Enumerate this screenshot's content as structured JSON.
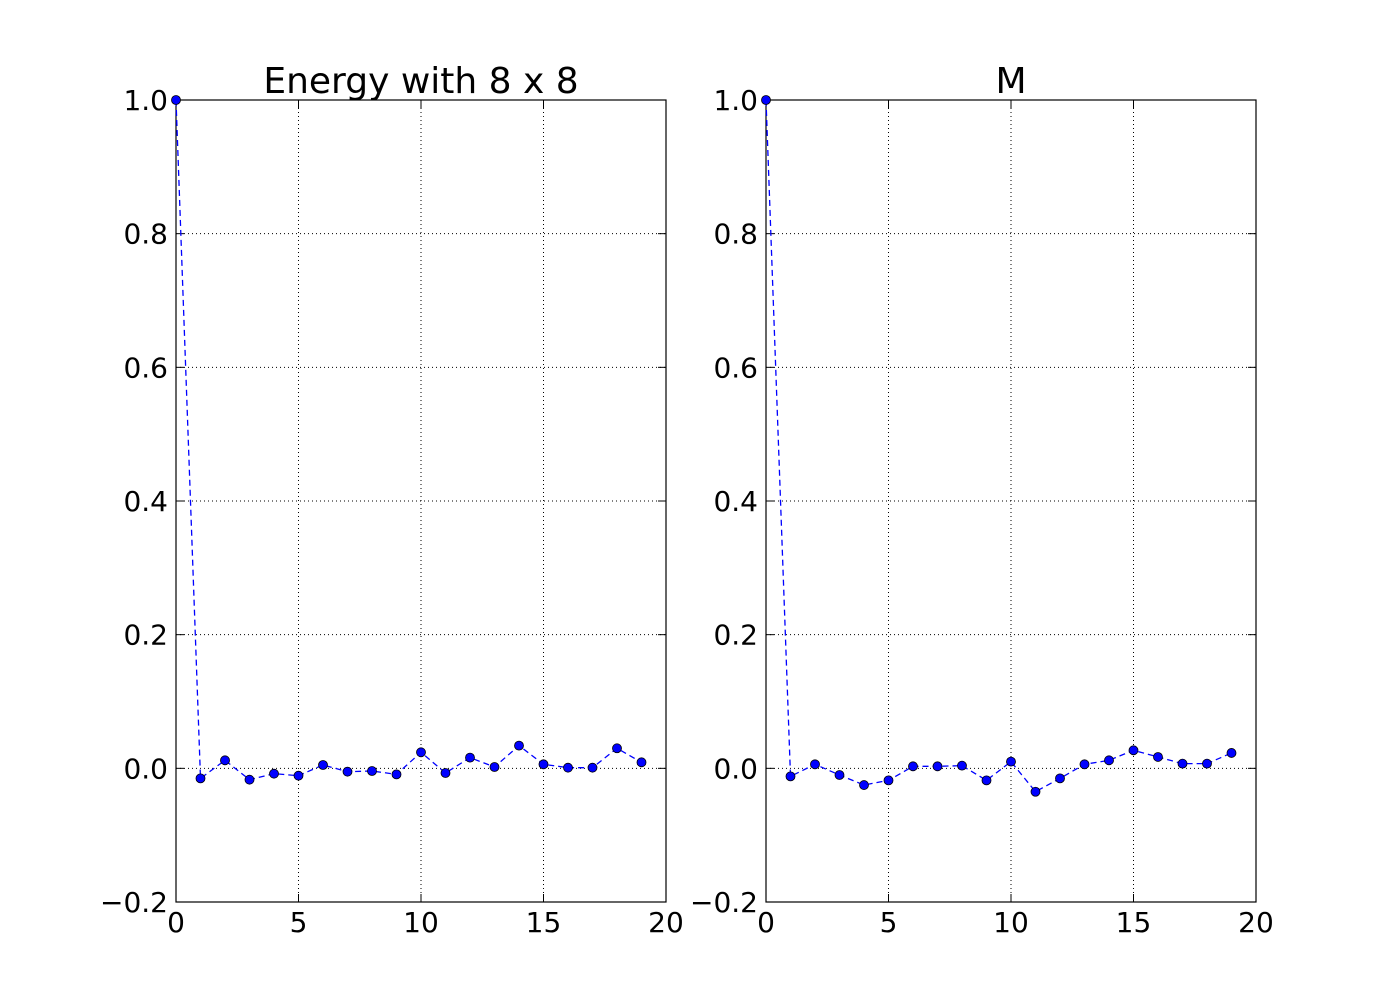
{
  "chart_data": [
    {
      "type": "line",
      "title": "Energy with 8 x 8",
      "xlabel": "",
      "ylabel": "",
      "xlim": [
        0,
        20
      ],
      "ylim": [
        -0.2,
        1.0
      ],
      "xticks": [
        "0",
        "5",
        "10",
        "15",
        "20"
      ],
      "yticks": [
        "−0.2",
        "0.0",
        "0.2",
        "0.4",
        "0.6",
        "0.8",
        "1.0"
      ],
      "grid": true,
      "legend": "none",
      "line_style": "dashed",
      "marker": "circle",
      "color": "#0000ff",
      "series": [
        {
          "x": [
            0,
            1,
            2,
            3,
            4,
            5,
            6,
            7,
            8,
            9,
            10,
            11,
            12,
            13,
            14,
            15,
            16,
            17,
            18,
            19
          ],
          "y": [
            1.0,
            -0.015,
            0.012,
            -0.017,
            -0.008,
            -0.011,
            0.005,
            -0.005,
            -0.004,
            -0.009,
            0.024,
            -0.007,
            0.016,
            0.002,
            0.034,
            0.006,
            0.001,
            0.001,
            0.03,
            0.009
          ]
        }
      ]
    },
    {
      "type": "line",
      "title": "M",
      "xlabel": "",
      "ylabel": "",
      "xlim": [
        0,
        20
      ],
      "ylim": [
        -0.2,
        1.0
      ],
      "xticks": [
        "0",
        "5",
        "10",
        "15",
        "20"
      ],
      "yticks": [
        "−0.2",
        "0.0",
        "0.2",
        "0.4",
        "0.6",
        "0.8",
        "1.0"
      ],
      "grid": true,
      "legend": "none",
      "line_style": "dashed",
      "marker": "circle",
      "color": "#0000ff",
      "series": [
        {
          "x": [
            0,
            1,
            2,
            3,
            4,
            5,
            6,
            7,
            8,
            9,
            10,
            11,
            12,
            13,
            14,
            15,
            16,
            17,
            18,
            19
          ],
          "y": [
            1.0,
            -0.012,
            0.006,
            -0.01,
            -0.025,
            -0.018,
            0.003,
            0.003,
            0.004,
            -0.018,
            0.01,
            -0.035,
            -0.015,
            0.006,
            0.012,
            0.027,
            0.017,
            0.007,
            0.007,
            0.023
          ]
        }
      ]
    }
  ]
}
